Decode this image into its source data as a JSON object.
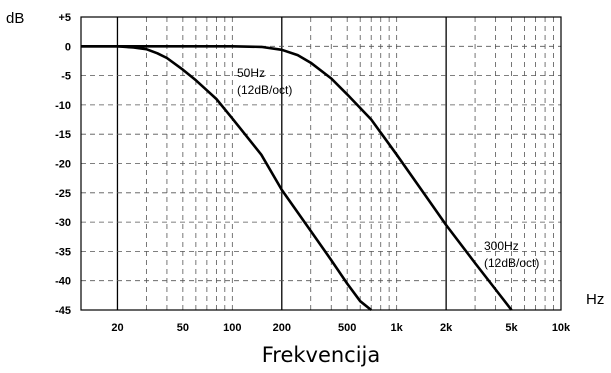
{
  "chart_data": {
    "type": "line",
    "title": "",
    "xlabel": "Frekvencija",
    "ylabel": "dB",
    "x_unit_label": "Hz",
    "x_scale": "log",
    "xlim": [
      12,
      10000
    ],
    "ylim": [
      -45,
      5
    ],
    "x_ticks": [
      {
        "value": 20,
        "label": "20"
      },
      {
        "value": 50,
        "label": "50"
      },
      {
        "value": 100,
        "label": "100"
      },
      {
        "value": 200,
        "label": "200"
      },
      {
        "value": 500,
        "label": "500"
      },
      {
        "value": 1000,
        "label": "1k"
      },
      {
        "value": 2000,
        "label": "2k"
      },
      {
        "value": 5000,
        "label": "5k"
      },
      {
        "value": 10000,
        "label": "10k"
      }
    ],
    "y_ticks": [
      {
        "value": 5,
        "label": "+5"
      },
      {
        "value": 0,
        "label": "0"
      },
      {
        "value": -5,
        "label": "-5"
      },
      {
        "value": -10,
        "label": "-10"
      },
      {
        "value": -15,
        "label": "-15"
      },
      {
        "value": -20,
        "label": "-20"
      },
      {
        "value": -25,
        "label": "-25"
      },
      {
        "value": -30,
        "label": "-30"
      },
      {
        "value": -35,
        "label": "-35"
      },
      {
        "value": -40,
        "label": "-40"
      },
      {
        "value": -45,
        "label": "-45"
      }
    ],
    "grid": true,
    "series": [
      {
        "cutoff_hz": 50,
        "slope_db_per_oct": 12,
        "annotation": [
          "50Hz",
          "(12dB/oct)"
        ],
        "x": [
          12,
          20,
          25,
          30,
          35,
          40,
          50,
          60,
          70,
          80,
          100,
          150,
          200,
          300,
          400,
          500,
          600,
          700
        ],
        "y": [
          0,
          0,
          -0.2,
          -0.5,
          -1.2,
          -2,
          -4,
          -5.8,
          -7.5,
          -9,
          -12.3,
          -18.5,
          -24.5,
          -31.5,
          -36.5,
          -40.5,
          -43.5,
          -45
        ]
      },
      {
        "cutoff_hz": 300,
        "slope_db_per_oct": 12,
        "annotation": [
          "300Hz",
          "(12dB/oct)"
        ],
        "x": [
          12,
          100,
          150,
          200,
          250,
          300,
          400,
          500,
          700,
          1000,
          1500,
          2000,
          3000,
          4000,
          5000
        ],
        "y": [
          0,
          0,
          -0.1,
          -0.6,
          -1.5,
          -2.8,
          -5.5,
          -8.2,
          -12.5,
          -18.5,
          -25.5,
          -30.5,
          -37,
          -41.5,
          -45
        ]
      }
    ]
  }
}
